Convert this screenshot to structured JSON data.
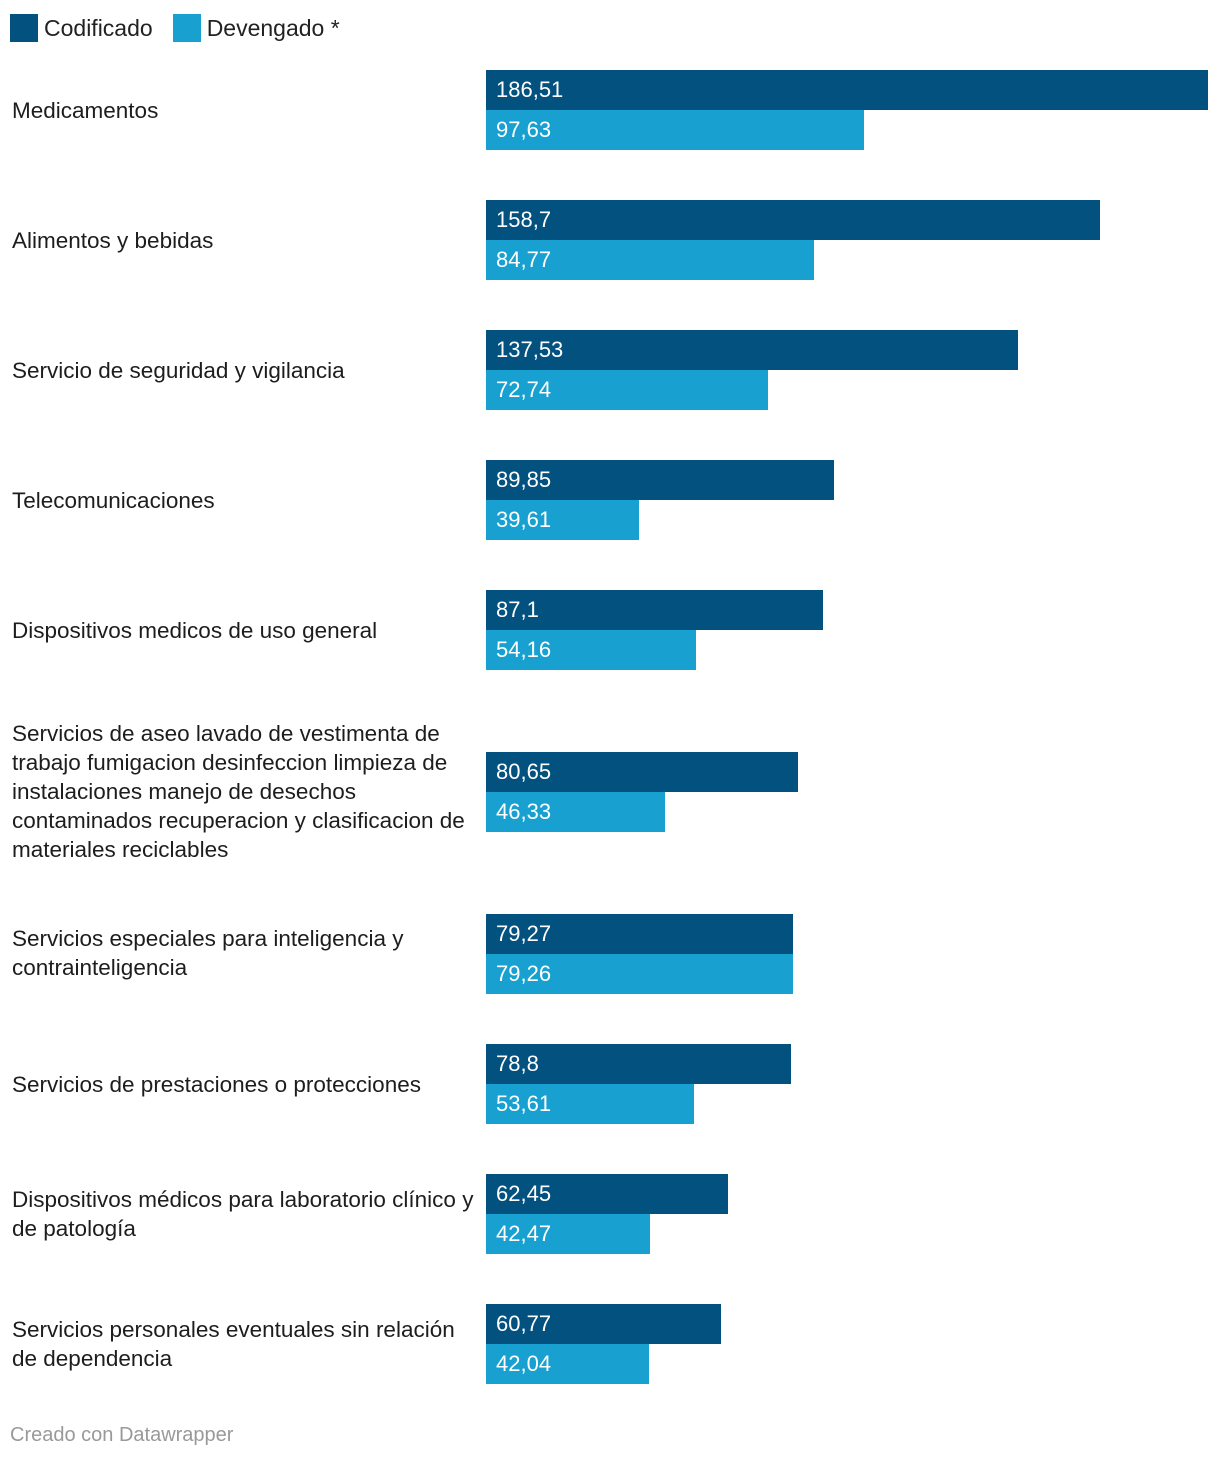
{
  "legend": [
    {
      "label": "Codificado",
      "color": "#03517f"
    },
    {
      "label": "Devengado *",
      "color": "#18a1d0"
    }
  ],
  "chart_data": {
    "type": "bar",
    "orientation": "horizontal",
    "categories": [
      "Medicamentos",
      "Alimentos y bebidas",
      "Servicio de seguridad y vigilancia",
      "Telecomunicaciones",
      "Dispositivos medicos de uso general",
      "Servicios de aseo lavado de vestimenta de trabajo fumigacion desinfeccion limpieza de instalaciones manejo de desechos contaminados recuperacion y clasificacion de materiales reciclables",
      "Servicios especiales para inteligencia y contrainteligencia",
      "Servicios de prestaciones o protecciones",
      "Dispositivos médicos para laboratorio clínico y de patología",
      "Servicios personales eventuales sin relación de dependencia"
    ],
    "series": [
      {
        "name": "Codificado",
        "color": "#03517f",
        "values": [
          186.51,
          158.7,
          137.53,
          89.85,
          87.1,
          80.65,
          79.27,
          78.8,
          62.45,
          60.77
        ],
        "labels": [
          "186,51",
          "158,7",
          "137,53",
          "89,85",
          "87,1",
          "80,65",
          "79,27",
          "78,8",
          "62,45",
          "60,77"
        ]
      },
      {
        "name": "Devengado *",
        "color": "#18a1d0",
        "values": [
          97.63,
          84.77,
          72.74,
          39.61,
          54.16,
          46.33,
          79.26,
          53.61,
          42.47,
          42.04
        ],
        "labels": [
          "97,63",
          "84,77",
          "72,74",
          "39,61",
          "54,16",
          "46,33",
          "79,26",
          "53,61",
          "42,47",
          "42,04"
        ]
      }
    ],
    "xlim": [
      0,
      186.51
    ],
    "grid": false,
    "legend_position": "top-left"
  },
  "footer": {
    "credit": "Creado con Datawrapper"
  }
}
